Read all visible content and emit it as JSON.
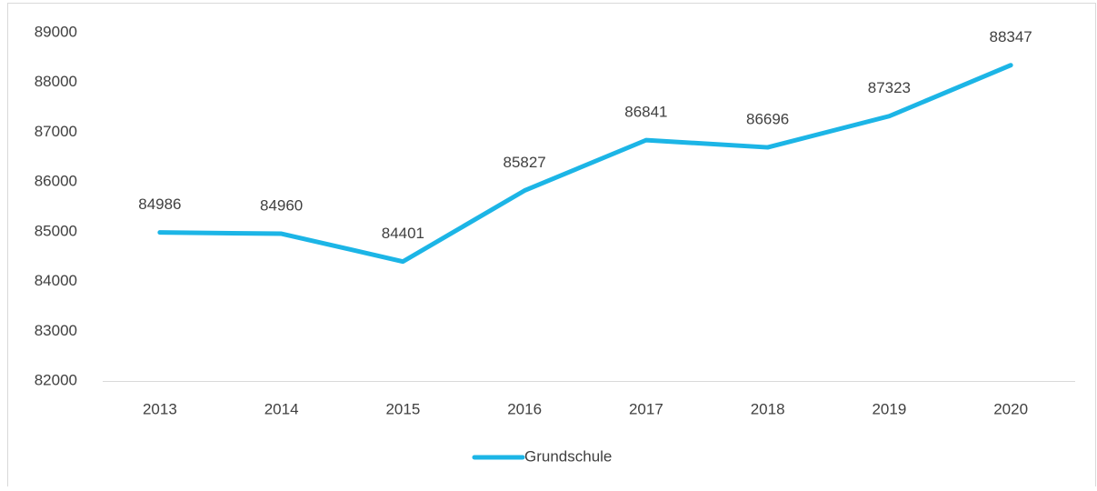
{
  "chart_data": {
    "type": "line",
    "categories": [
      "2013",
      "2014",
      "2015",
      "2016",
      "2017",
      "2018",
      "2019",
      "2020"
    ],
    "series": [
      {
        "name": "Grundschule",
        "color": "#1cb5e6",
        "values": [
          84986,
          84960,
          84401,
          85827,
          86841,
          86696,
          87323,
          88347
        ]
      }
    ],
    "ylim": [
      82000,
      89000
    ],
    "yticks": [
      82000,
      83000,
      84000,
      85000,
      86000,
      87000,
      88000,
      89000
    ],
    "grid": false,
    "legend": "bottom"
  }
}
